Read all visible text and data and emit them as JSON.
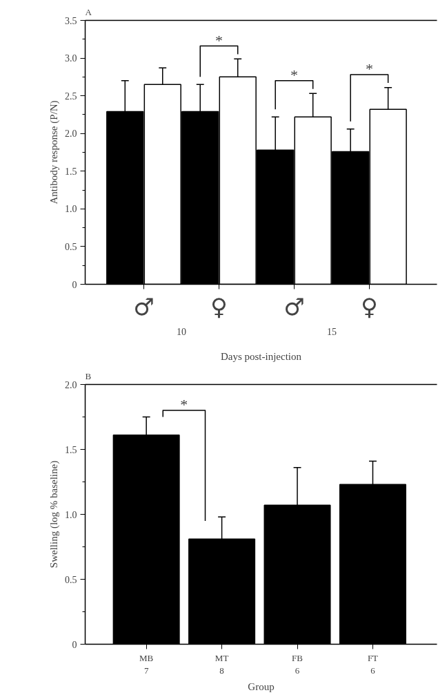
{
  "chart_data": [
    {
      "type": "bar",
      "title": "A",
      "categories": [
        "♂",
        "♀",
        "♂",
        "♀"
      ],
      "xlabel": "Days post-injection",
      "ylabel": "Antibody response (P/N)",
      "series": [
        {
          "color": "#000000",
          "values": [
            2.29,
            2.29,
            1.78,
            1.76
          ],
          "errors": [
            [
              2.29,
              2.7
            ],
            [
              2.29,
              2.65
            ],
            [
              1.78,
              2.22
            ],
            [
              1.76,
              2.06
            ]
          ]
        },
        {
          "color": "#ffffff",
          "values": [
            2.65,
            2.75,
            2.22,
            2.32
          ],
          "errors": [
            [
              2.65,
              2.87
            ],
            [
              2.75,
              2.99
            ],
            [
              2.22,
              2.53
            ],
            [
              2.32,
              2.61
            ]
          ]
        }
      ],
      "ylim": [
        0,
        3.5
      ],
      "yticks": [
        0,
        0.5,
        {
          "value": 1,
          "label": "1.0"
        },
        1.5,
        {
          "value": 2,
          "label": "2.0"
        },
        2.5,
        {
          "value": 3,
          "label": "3.0"
        },
        3.5
      ],
      "annotations": [
        "10",
        "15",
        "*",
        "*",
        "*"
      ]
    },
    {
      "type": "bar",
      "title": "B",
      "categories": [
        "MB\n7",
        "MT\n8",
        "FB\n6",
        "FT\n6"
      ],
      "xlabel": "Group",
      "ylabel": "Swelling (log % baseline)",
      "series": [
        {
          "color": "#000000",
          "values": [
            1.61,
            0.81,
            1.07,
            1.23
          ],
          "errors": [
            [
              1.61,
              1.75
            ],
            [
              0.81,
              0.98
            ],
            [
              1.07,
              1.36
            ],
            [
              1.23,
              1.41
            ]
          ]
        }
      ],
      "ylim": [
        0,
        2
      ],
      "yticks": [
        0,
        0.5,
        {
          "value": 1,
          "label": "1.0"
        },
        1.5,
        {
          "value": 2,
          "label": "2.0"
        }
      ],
      "annotations": [
        "*"
      ]
    }
  ]
}
